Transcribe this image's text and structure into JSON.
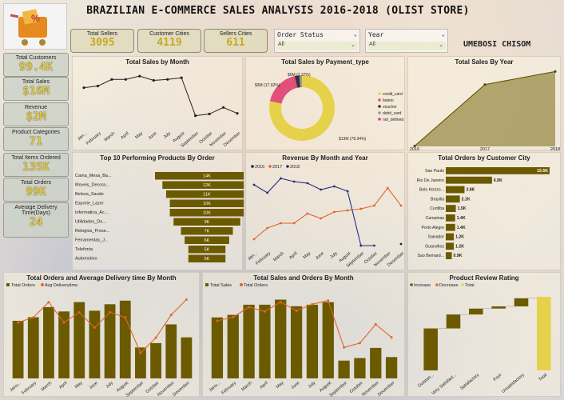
{
  "header": {
    "title": "BRAZILIAN E-COMMERCE SALES ANALYSIS 2016-2018 (OLIST STORE)",
    "author": "UMEBOSI CHISOM",
    "logo_badge": "%"
  },
  "top_kpis": [
    {
      "label": "Total Sellers",
      "value": "3095"
    },
    {
      "label": "Customer Cities",
      "value": "4119"
    },
    {
      "label": "Sellers Cities",
      "value": "611"
    }
  ],
  "slicers": [
    {
      "label": "Order Status",
      "value": "All"
    },
    {
      "label": "Year",
      "value": "All"
    }
  ],
  "side_kpis": [
    {
      "label": "Total Customers",
      "value": "99.4K"
    },
    {
      "label": "Total Sales",
      "value": "$16M"
    },
    {
      "label": "Revenue",
      "value": "$2M"
    },
    {
      "label": "Product Categories",
      "value": "71"
    },
    {
      "label": "Total Items Ordered",
      "value": "135K"
    },
    {
      "label": "Total Orders",
      "value": "99K"
    },
    {
      "label": "Average Delivery Time(Days)",
      "value": "24"
    }
  ],
  "colors": {
    "olive": "#6b5a00",
    "orange": "#e0652a",
    "navy": "#1f2f8a",
    "gold": "#e6d24a",
    "pink": "#e0507a"
  },
  "months": [
    "January",
    "February",
    "March",
    "April",
    "May",
    "June",
    "July",
    "August",
    "September",
    "October",
    "November",
    "December"
  ],
  "month_labels": [
    "Jan...",
    "February",
    "March",
    "April",
    "May",
    "June",
    "July",
    "August",
    "September",
    "October",
    "November",
    "December"
  ],
  "month_labels_short": [
    "Janu...",
    "February",
    "March",
    "April",
    "May",
    "June",
    "July",
    "August",
    "September",
    "October",
    "November",
    "December"
  ],
  "chart_data": [
    {
      "id": "sales_by_month",
      "type": "line",
      "title": "Total Sales by Month",
      "categories": [
        "Jan...",
        "February",
        "March",
        "April",
        "May",
        "June",
        "July",
        "August",
        "September",
        "October",
        "November",
        "December"
      ],
      "values": [
        1.2,
        1.25,
        1.45,
        1.45,
        1.55,
        1.42,
        1.45,
        1.5,
        0.35,
        0.4,
        0.6,
        0.42
      ]
    },
    {
      "id": "payment_type",
      "type": "pie",
      "title": "Total Sales by Payment_type",
      "slices": [
        {
          "name": "credit_card",
          "value": 13,
          "label": "$13M (78.34%)",
          "color": "#e6d24a"
        },
        {
          "name": "boleto",
          "value": 3,
          "label": "$3M (17.92%)",
          "color": "#e0507a"
        },
        {
          "name": "voucher",
          "value": 0.38,
          "label": "$0M (2.37%)",
          "color": "#333333"
        },
        {
          "name": "debit_card",
          "value": 0.2,
          "label": "",
          "color": "#999999"
        },
        {
          "name": "not_defined",
          "value": 0.01,
          "label": "",
          "color": "#c040a0"
        }
      ]
    },
    {
      "id": "sales_by_year",
      "type": "area",
      "title": "Total Sales By Year",
      "categories": [
        "2016",
        "2017",
        "2018"
      ],
      "values": [
        0.05,
        7.1,
        8.6
      ]
    },
    {
      "id": "top_products",
      "type": "bar",
      "title": "Top 10 Performing Products By Order",
      "categories": [
        "Cama_Mesa_Ba...",
        "Moveis_Decora...",
        "Beleza_Saude",
        "Esporte_Lazer",
        "Informatica_Ac...",
        "Utilidades_Do...",
        "Relogios_Prese...",
        "Ferramentas_J...",
        "Telefonia",
        "Automotivo"
      ],
      "values": [
        14,
        12,
        11,
        10,
        10,
        9,
        7,
        6,
        5,
        5
      ],
      "labels": [
        "14K",
        "12K",
        "11K",
        "10K",
        "10K",
        "9K",
        "7K",
        "6K",
        "5K",
        "5K"
      ]
    },
    {
      "id": "revenue_month_year",
      "type": "line",
      "title": "Revenue By Month and Year",
      "categories": [
        "Jan...",
        "February",
        "March",
        "April",
        "May",
        "June",
        "July",
        "August",
        "September",
        "October",
        "November",
        "December"
      ],
      "series": [
        {
          "name": "2016",
          "values": [
            null,
            null,
            null,
            null,
            null,
            null,
            null,
            null,
            0.01,
            null,
            null,
            0.02
          ]
        },
        {
          "name": "2017",
          "values": [
            0.05,
            0.12,
            0.15,
            0.15,
            0.21,
            0.18,
            0.22,
            0.23,
            0.24,
            0.26,
            0.37,
            0.26
          ]
        },
        {
          "name": "2018",
          "values": [
            0.39,
            0.34,
            0.43,
            0.41,
            0.4,
            0.36,
            0.38,
            0.35,
            0.01,
            0.01,
            null,
            null
          ]
        }
      ]
    },
    {
      "id": "orders_by_city",
      "type": "bar",
      "title": "Total Orders by Customer City",
      "categories": [
        "Sao Paulo",
        "Rio De Janeiro",
        "Belo Horizo...",
        "Brasilia",
        "Curitiba",
        "Campinas",
        "Porto Alegre",
        "Salvador",
        "Guarulhos",
        "Sao Bernard..."
      ],
      "values": [
        15.5,
        6.9,
        2.8,
        2.1,
        1.5,
        1.4,
        1.4,
        1.2,
        1.2,
        0.9
      ],
      "labels": [
        "15.5K",
        "6.9K",
        "2.8K",
        "2.1K",
        "1.5K",
        "1.4K",
        "1.4K",
        "1.2K",
        "1.2K",
        "0.9K"
      ]
    },
    {
      "id": "orders_delivery_month",
      "type": "bar",
      "title": "Total Orders and Average Delivery time By Month",
      "categories": [
        "Janu...",
        "February",
        "March",
        "April",
        "May",
        "June",
        "July",
        "August",
        "September",
        "October",
        "November",
        "December"
      ],
      "series": [
        {
          "name": "Total Orders",
          "values": [
            8,
            8.5,
            9.9,
            9.3,
            10.6,
            9.4,
            10.3,
            10.8,
            4.3,
            4.9,
            7.5,
            5.7
          ]
        },
        {
          "name": "Avg Deliverytime",
          "values": [
            22,
            24,
            30,
            22,
            26,
            20,
            26,
            24,
            10,
            16,
            25,
            31
          ]
        }
      ]
    },
    {
      "id": "sales_orders_month",
      "type": "bar",
      "title": "Total Sales and Orders By Month",
      "categories": [
        "Janu...",
        "February",
        "March",
        "April",
        "May",
        "June",
        "July",
        "August",
        "September",
        "October",
        "November",
        "December"
      ],
      "series": [
        {
          "name": "Total Sales",
          "values": [
            1.2,
            1.25,
            1.45,
            1.45,
            1.55,
            1.42,
            1.45,
            1.5,
            0.35,
            0.4,
            0.6,
            0.42
          ]
        },
        {
          "name": "Total Orders",
          "values": [
            8,
            8.5,
            9.9,
            9.3,
            10.6,
            9.4,
            10.3,
            10.8,
            4.3,
            4.9,
            7.5,
            5.7
          ]
        }
      ]
    },
    {
      "id": "review_rating",
      "type": "waterfall",
      "title": "Product Review Rating",
      "legend": [
        "Increase",
        "Decrease",
        "Total"
      ],
      "categories": [
        "Outstan...",
        "Very Satisfact...",
        "Satisfactory",
        "Poor",
        "Unsatisfactory",
        "Total"
      ],
      "values": [
        57,
        19,
        8,
        3,
        11,
        100
      ]
    }
  ]
}
